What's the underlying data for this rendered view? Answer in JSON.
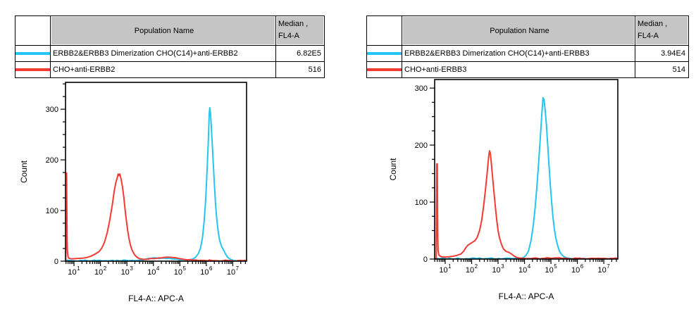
{
  "colors": {
    "series_cyan": "#25c5f3",
    "series_red": "#f43b33",
    "table_header_bg": "#c5c5c5",
    "axis": "#000000"
  },
  "panels": [
    {
      "table": {
        "population_header": "Population Name",
        "median_header_line1": "Median ,",
        "median_header_line2": "FL4-A",
        "rows": [
          {
            "color": "#25c5f3",
            "name": "ERBB2&ERBB3 Dimerization CHO(C14)+anti-ERBB2",
            "median": "6.82E5"
          },
          {
            "color": "#f43b33",
            "name": "CHO+anti-ERBB2",
            "median": "516"
          }
        ]
      }
    },
    {
      "table": {
        "population_header": "Population Name",
        "median_header_line1": "Median ,",
        "median_header_line2": "FL4-A",
        "rows": [
          {
            "color": "#25c5f3",
            "name": "ERBB2&ERBB3 Dimerization CHO(C14)+anti-ERBB3",
            "median": "3.94E4"
          },
          {
            "color": "#f43b33",
            "name": "CHO+anti-ERBB3",
            "median": "514"
          }
        ]
      }
    }
  ],
  "chart_data": [
    {
      "type": "line",
      "title": "",
      "xlabel": "FL4-A:: APC-A",
      "ylabel": "Count",
      "xscale": "log10",
      "grid": false,
      "legend_position": "table-above",
      "xlim_log10": [
        0.68,
        7.52
      ],
      "ylim": [
        0,
        353
      ],
      "yticks_major": [
        0,
        100,
        200,
        300
      ],
      "ytick_minor_step": 25,
      "xtick_decades": [
        1,
        2,
        3,
        4,
        5,
        6,
        7
      ],
      "series": [
        {
          "name": "ERBB2&ERBB3 Dimerization CHO(C14)+anti-ERBB2",
          "color": "#25c5f3",
          "points_log10x_count": [
            [
              0.68,
              2
            ],
            [
              0.9,
              1
            ],
            [
              1.5,
              1
            ],
            [
              2.2,
              1
            ],
            [
              2.8,
              1
            ],
            [
              3.2,
              1.5
            ],
            [
              3.5,
              2.5
            ],
            [
              3.7,
              4
            ],
            [
              3.9,
              5.5
            ],
            [
              4.1,
              6.5
            ],
            [
              4.3,
              6
            ],
            [
              4.5,
              5
            ],
            [
              4.7,
              4.5
            ],
            [
              4.9,
              4
            ],
            [
              5.1,
              3
            ],
            [
              5.25,
              2.5
            ],
            [
              5.4,
              3
            ],
            [
              5.5,
              4.5
            ],
            [
              5.6,
              8
            ],
            [
              5.7,
              15
            ],
            [
              5.78,
              26
            ],
            [
              5.85,
              45
            ],
            [
              5.92,
              80
            ],
            [
              5.98,
              125
            ],
            [
              6.03,
              180
            ],
            [
              6.08,
              245
            ],
            [
              6.11,
              290
            ],
            [
              6.13,
              303
            ],
            [
              6.16,
              290
            ],
            [
              6.2,
              255
            ],
            [
              6.25,
              205
            ],
            [
              6.3,
              155
            ],
            [
              6.35,
              112
            ],
            [
              6.4,
              80
            ],
            [
              6.45,
              58
            ],
            [
              6.5,
              42
            ],
            [
              6.57,
              30
            ],
            [
              6.65,
              22
            ],
            [
              6.72,
              15
            ],
            [
              6.8,
              8
            ],
            [
              6.9,
              4
            ],
            [
              7.0,
              2
            ],
            [
              7.1,
              1
            ],
            [
              7.3,
              0.8
            ],
            [
              7.52,
              0.8
            ]
          ]
        },
        {
          "name": "CHO+anti-ERBB2",
          "color": "#f43b33",
          "points_log10x_count": [
            [
              0.69,
              0
            ],
            [
              0.7,
              90
            ],
            [
              0.71,
              174
            ],
            [
              0.72,
              174
            ],
            [
              0.73,
              100
            ],
            [
              0.74,
              40
            ],
            [
              0.75,
              22
            ],
            [
              0.77,
              10
            ],
            [
              0.8,
              6
            ],
            [
              0.9,
              4.5
            ],
            [
              1.05,
              5
            ],
            [
              1.2,
              5.5
            ],
            [
              1.35,
              6
            ],
            [
              1.5,
              7.5
            ],
            [
              1.65,
              10
            ],
            [
              1.8,
              14
            ],
            [
              1.95,
              19
            ],
            [
              2.05,
              26
            ],
            [
              2.15,
              37
            ],
            [
              2.25,
              55
            ],
            [
              2.35,
              80
            ],
            [
              2.45,
              112
            ],
            [
              2.52,
              138
            ],
            [
              2.58,
              155
            ],
            [
              2.63,
              164
            ],
            [
              2.67,
              172
            ],
            [
              2.7,
              169
            ],
            [
              2.73,
              172
            ],
            [
              2.78,
              162
            ],
            [
              2.83,
              147
            ],
            [
              2.88,
              127
            ],
            [
              2.93,
              103
            ],
            [
              2.98,
              80
            ],
            [
              3.03,
              60
            ],
            [
              3.08,
              44
            ],
            [
              3.13,
              32
            ],
            [
              3.2,
              21
            ],
            [
              3.3,
              12
            ],
            [
              3.4,
              7
            ],
            [
              3.5,
              4.5
            ],
            [
              3.65,
              3.5
            ],
            [
              3.8,
              4
            ],
            [
              4.0,
              5
            ],
            [
              4.2,
              6.5
            ],
            [
              4.4,
              7.5
            ],
            [
              4.55,
              8
            ],
            [
              4.7,
              7.5
            ],
            [
              4.85,
              6.5
            ],
            [
              5.0,
              5
            ],
            [
              5.15,
              3.5
            ],
            [
              5.3,
              2.5
            ],
            [
              5.5,
              2
            ],
            [
              5.8,
              1.5
            ],
            [
              6.2,
              1.2
            ],
            [
              6.8,
              1.2
            ],
            [
              7.2,
              1.2
            ],
            [
              7.52,
              1.2
            ]
          ]
        }
      ]
    },
    {
      "type": "line",
      "title": "",
      "xlabel": "FL4-A:: APC-A",
      "ylabel": "Count",
      "xscale": "log10",
      "grid": false,
      "legend_position": "table-above",
      "xlim_log10": [
        0.6,
        7.53
      ],
      "ylim": [
        0,
        315
      ],
      "yticks_major": [
        0,
        100,
        200,
        300
      ],
      "ytick_minor_step": 25,
      "xtick_decades": [
        1,
        2,
        3,
        4,
        5,
        6,
        7
      ],
      "series": [
        {
          "name": "ERBB2&ERBB3 Dimerization CHO(C14)+anti-ERBB3",
          "color": "#25c5f3",
          "points_log10x_count": [
            [
              0.6,
              1
            ],
            [
              1.0,
              0.8
            ],
            [
              1.8,
              0.8
            ],
            [
              2.6,
              0.8
            ],
            [
              3.2,
              0.8
            ],
            [
              3.6,
              1
            ],
            [
              3.85,
              1.5
            ],
            [
              3.95,
              2.5
            ],
            [
              4.05,
              6
            ],
            [
              4.15,
              14
            ],
            [
              4.25,
              33
            ],
            [
              4.33,
              58
            ],
            [
              4.4,
              90
            ],
            [
              4.47,
              128
            ],
            [
              4.53,
              165
            ],
            [
              4.6,
              215
            ],
            [
              4.65,
              250
            ],
            [
              4.7,
              283
            ],
            [
              4.74,
              280
            ],
            [
              4.78,
              262
            ],
            [
              4.83,
              235
            ],
            [
              4.88,
              198
            ],
            [
              4.93,
              162
            ],
            [
              4.98,
              128
            ],
            [
              5.03,
              98
            ],
            [
              5.08,
              72
            ],
            [
              5.13,
              52
            ],
            [
              5.18,
              38
            ],
            [
              5.25,
              24
            ],
            [
              5.32,
              14
            ],
            [
              5.4,
              8
            ],
            [
              5.5,
              4
            ],
            [
              5.6,
              2
            ],
            [
              5.75,
              1
            ],
            [
              6.0,
              0.6
            ],
            [
              6.5,
              0.6
            ],
            [
              7.0,
              0.6
            ],
            [
              7.53,
              0.6
            ]
          ]
        },
        {
          "name": "CHO+anti-ERBB3",
          "color": "#f43b33",
          "points_log10x_count": [
            [
              0.66,
              0
            ],
            [
              0.67,
              80
            ],
            [
              0.68,
              167
            ],
            [
              0.7,
              167
            ],
            [
              0.71,
              90
            ],
            [
              0.72,
              35
            ],
            [
              0.73,
              14
            ],
            [
              0.76,
              7
            ],
            [
              0.85,
              4
            ],
            [
              1.0,
              3.5
            ],
            [
              1.15,
              4
            ],
            [
              1.3,
              5
            ],
            [
              1.45,
              6.5
            ],
            [
              1.6,
              9
            ],
            [
              1.7,
              14
            ],
            [
              1.78,
              20
            ],
            [
              1.85,
              24
            ],
            [
              1.95,
              27
            ],
            [
              2.05,
              30
            ],
            [
              2.12,
              32
            ],
            [
              2.2,
              37
            ],
            [
              2.3,
              50
            ],
            [
              2.38,
              68
            ],
            [
              2.45,
              92
            ],
            [
              2.52,
              120
            ],
            [
              2.58,
              148
            ],
            [
              2.62,
              168
            ],
            [
              2.65,
              182
            ],
            [
              2.68,
              190
            ],
            [
              2.71,
              184
            ],
            [
              2.75,
              165
            ],
            [
              2.8,
              140
            ],
            [
              2.85,
              115
            ],
            [
              2.9,
              90
            ],
            [
              2.95,
              68
            ],
            [
              3.0,
              50
            ],
            [
              3.05,
              38
            ],
            [
              3.12,
              27
            ],
            [
              3.2,
              18
            ],
            [
              3.3,
              13.5
            ],
            [
              3.4,
              12
            ],
            [
              3.5,
              9
            ],
            [
              3.6,
              5.5
            ],
            [
              3.7,
              3
            ],
            [
              3.85,
              1.5
            ],
            [
              4.0,
              1.2
            ],
            [
              4.5,
              1.2
            ],
            [
              5.0,
              1.2
            ],
            [
              6.0,
              1.2
            ],
            [
              7.0,
              1.2
            ],
            [
              7.53,
              1.2
            ]
          ]
        }
      ]
    }
  ]
}
